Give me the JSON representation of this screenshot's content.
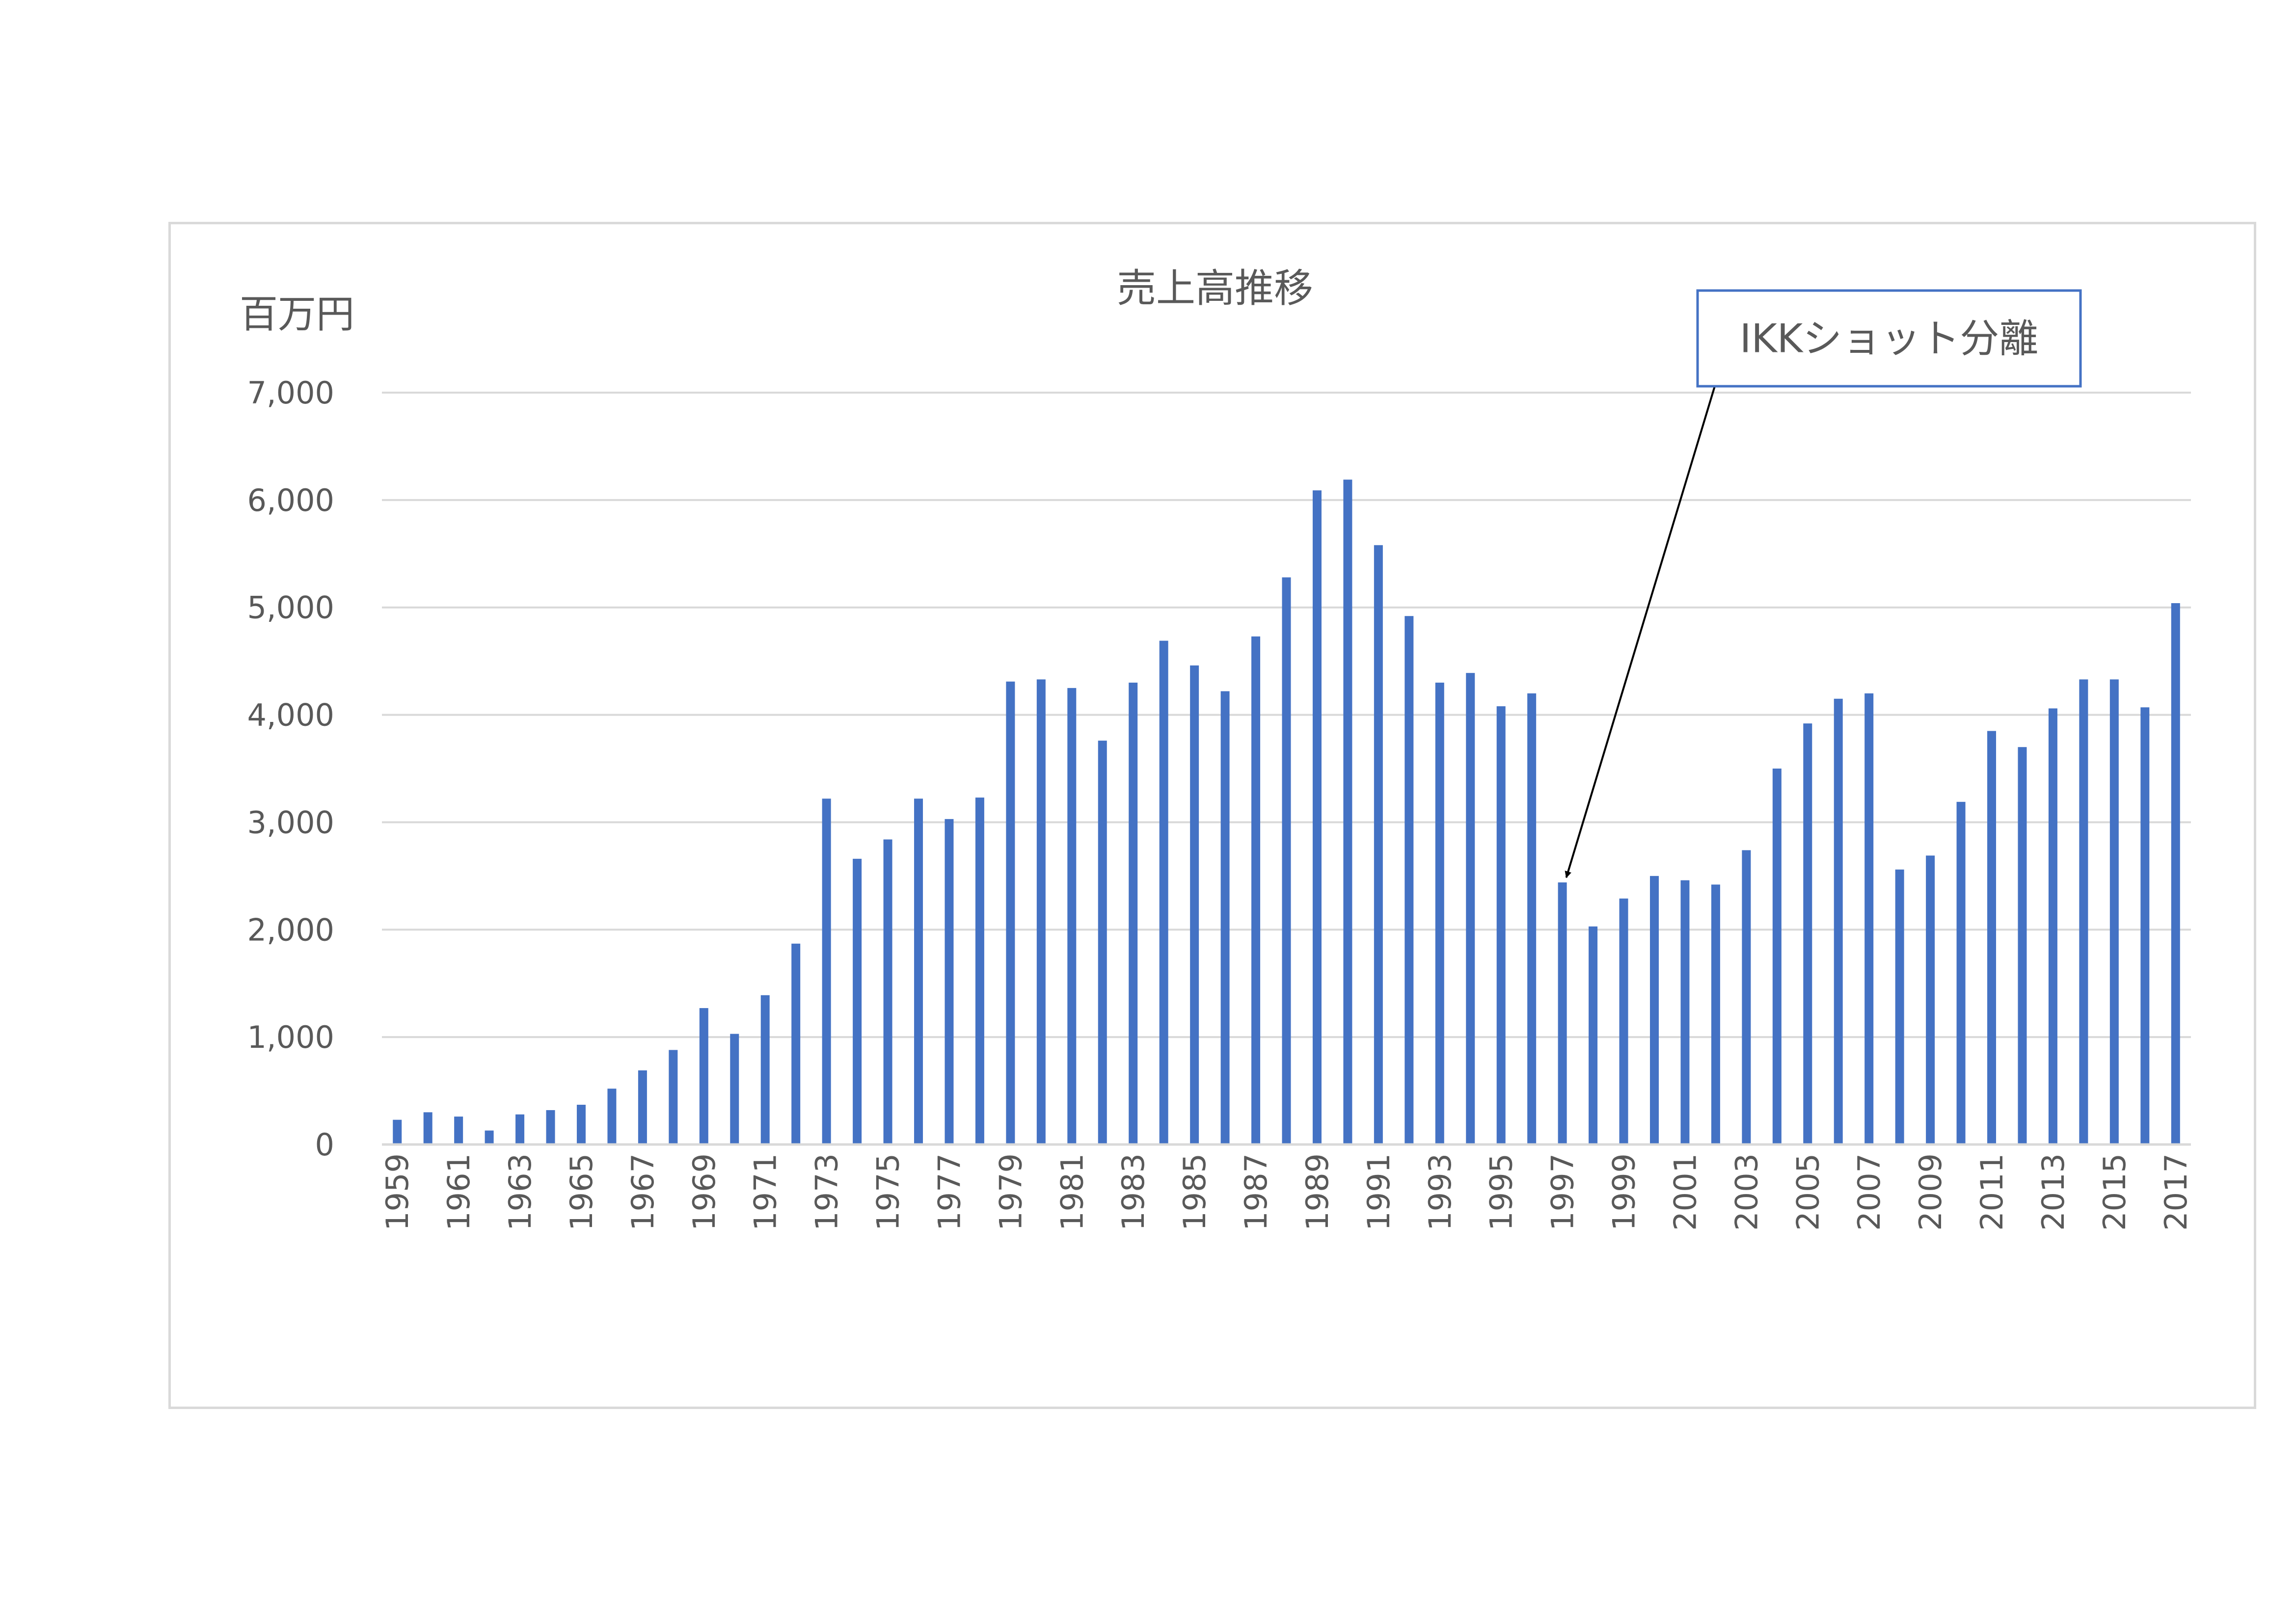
{
  "chart_data": {
    "type": "bar",
    "title": "売上高推移",
    "ylabel": "百万円",
    "xlabel": "",
    "ylim": [
      0,
      7000
    ],
    "y_ticks": [
      "0",
      "1,000",
      "2,000",
      "3,000",
      "4,000",
      "5,000",
      "6,000",
      "7,000"
    ],
    "y_tick_values": [
      0,
      1000,
      2000,
      3000,
      4000,
      5000,
      6000,
      7000
    ],
    "grid": true,
    "bar_color": "#4472c4",
    "categories": [
      "1959",
      "1960",
      "1961",
      "1962",
      "1963",
      "1964",
      "1965",
      "1966",
      "1967",
      "1968",
      "1969",
      "1970",
      "1971",
      "1972",
      "1973",
      "1974",
      "1975",
      "1976",
      "1977",
      "1978",
      "1979",
      "1980",
      "1981",
      "1982",
      "1983",
      "1984",
      "1985",
      "1986",
      "1987",
      "1988",
      "1989",
      "1990",
      "1991",
      "1992",
      "1993",
      "1994",
      "1995",
      "1996",
      "1997",
      "1998",
      "1999",
      "2000",
      "2001",
      "2002",
      "2003",
      "2004",
      "2005",
      "2006",
      "2007",
      "2008",
      "2009",
      "2010",
      "2011",
      "2012",
      "2013",
      "2014",
      "2015",
      "2016",
      "2017"
    ],
    "x_tick_labels": [
      "1959",
      "1961",
      "1963",
      "1965",
      "1967",
      "1969",
      "1971",
      "1973",
      "1975",
      "1977",
      "1979",
      "1981",
      "1983",
      "1985",
      "1987",
      "1989",
      "1991",
      "1993",
      "1995",
      "1997",
      "1999",
      "2001",
      "2003",
      "2005",
      "2007",
      "2009",
      "2011",
      "2013",
      "2015",
      "2017"
    ],
    "values": [
      230,
      300,
      260,
      130,
      280,
      320,
      370,
      520,
      690,
      880,
      1270,
      1030,
      1390,
      1870,
      3220,
      2660,
      2840,
      3220,
      3030,
      3230,
      4310,
      4330,
      4250,
      3760,
      4300,
      4690,
      4460,
      4220,
      4730,
      5280,
      6090,
      6190,
      5580,
      4920,
      4300,
      4390,
      4080,
      4200,
      2440,
      2030,
      2290,
      2500,
      2460,
      2420,
      2740,
      3500,
      3920,
      4150,
      4200,
      2560,
      2690,
      3190,
      3850,
      3700,
      4060,
      4330,
      4330,
      4070,
      5040
    ],
    "annotation": {
      "text": "IKKショット分離",
      "target_category": "1997",
      "border_color": "#4472c4"
    }
  }
}
